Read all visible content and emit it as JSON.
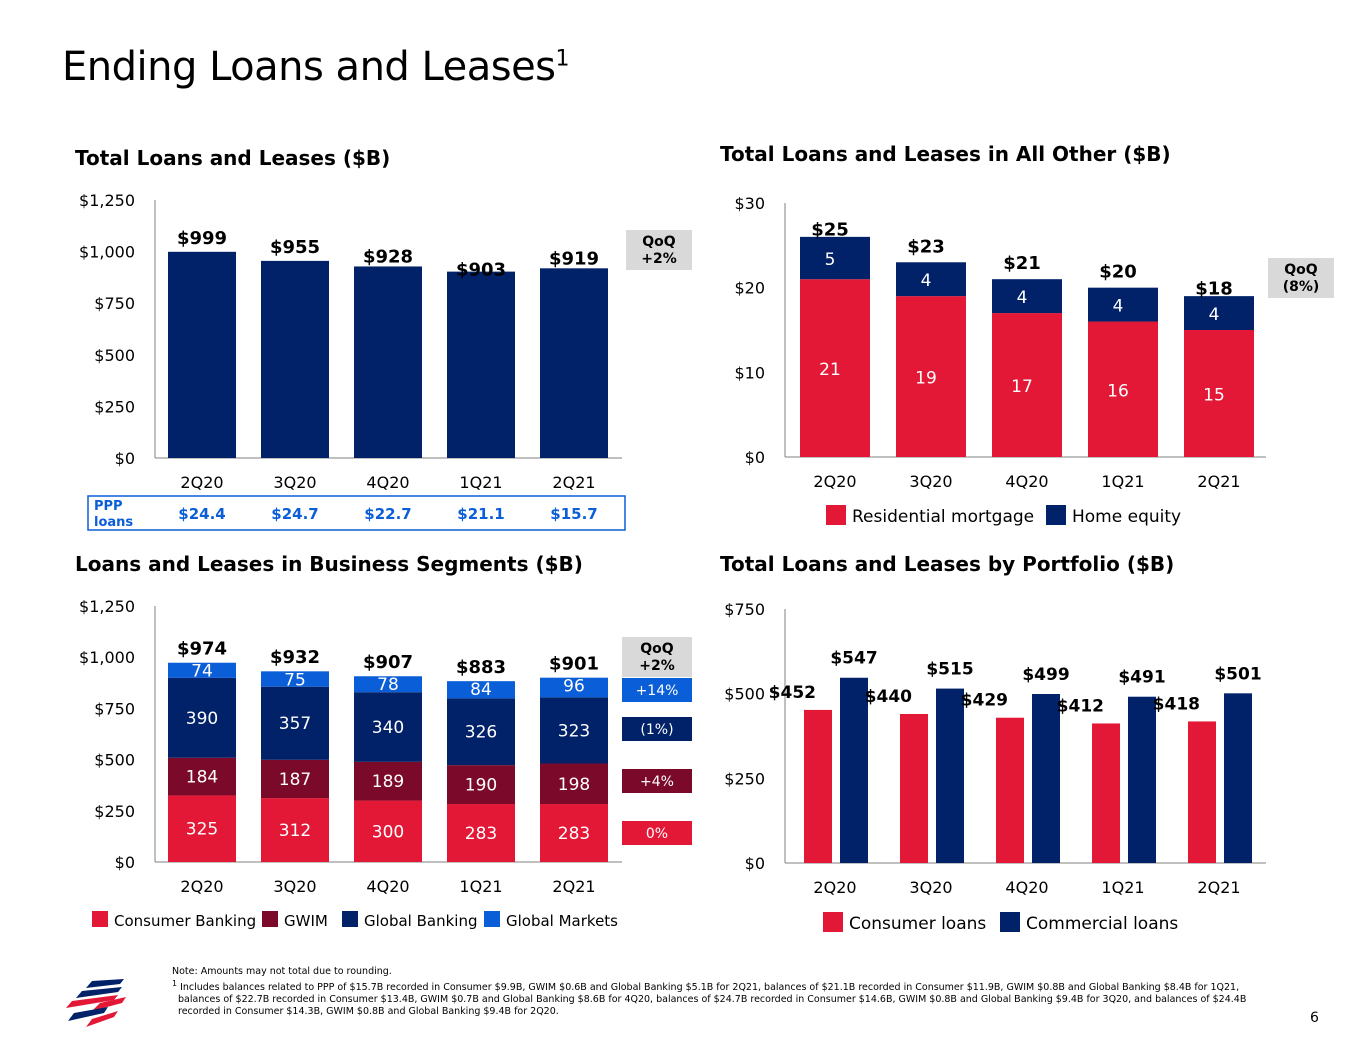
{
  "page": {
    "title": "Ending Loans and Leases",
    "title_superscript": "1",
    "page_number": "6"
  },
  "colors": {
    "navy": "#012169",
    "red": "#e31837",
    "maroon": "#7b0a2a",
    "blue": "#0a5ed7",
    "qoq_bg": "#d9d9d9"
  },
  "notes": {
    "note": "Note: Amounts may not total due to rounding.",
    "footnote_marker": "1",
    "footnote": "Includes balances related to PPP of $15.7B recorded in Consumer $9.9B, GWIM $0.6B and Global Banking $5.1B for 2Q21, balances of $21.1B recorded in Consumer $11.9B, GWIM $0.8B and Global Banking $8.4B for 1Q21, balances of $22.7B recorded in Consumer $13.4B, GWIM $0.7B and Global Banking $8.6B for 4Q20, balances of $24.7B recorded in Consumer $14.6B, GWIM $0.8B and Global Banking $9.4B for 3Q20, and balances of $24.4B recorded in Consumer $14.3B, GWIM $0.8B and Global Banking $9.4B for 2Q20."
  },
  "chart_data": [
    {
      "type": "bar",
      "title": "Total Loans and Leases ($B)",
      "categories": [
        "2Q20",
        "3Q20",
        "4Q20",
        "1Q21",
        "2Q21"
      ],
      "values": [
        999,
        955,
        928,
        903,
        919
      ],
      "data_labels": [
        "$999",
        "$955",
        "$928",
        "$903",
        "$919"
      ],
      "yticks": [
        "$0",
        "$250",
        "$500",
        "$750",
        "$1,000",
        "$1,250"
      ],
      "ylim": [
        0,
        1250
      ],
      "qoq": [
        "QoQ",
        "+2%"
      ],
      "ppp_row": {
        "label": [
          "PPP",
          "loans"
        ],
        "values": [
          "$24.4",
          "$24.7",
          "$22.7",
          "$21.1",
          "$15.7"
        ]
      }
    },
    {
      "type": "bar",
      "stacked": true,
      "title": "Total Loans and Leases in All Other ($B)",
      "categories": [
        "2Q20",
        "3Q20",
        "4Q20",
        "1Q21",
        "2Q21"
      ],
      "series": [
        {
          "name": "Residential mortgage",
          "color": "#e31837",
          "values": [
            21,
            19,
            17,
            16,
            15
          ]
        },
        {
          "name": "Home equity",
          "color": "#012169",
          "values": [
            5,
            4,
            4,
            4,
            4
          ]
        }
      ],
      "totals": [
        25,
        23,
        21,
        20,
        18
      ],
      "total_labels": [
        "$25",
        "$23",
        "$21",
        "$20",
        "$18"
      ],
      "yticks": [
        "$0",
        "$10",
        "$20",
        "$30"
      ],
      "ylim": [
        0,
        30
      ],
      "qoq": [
        "QoQ",
        "(8%)"
      ],
      "legend_position": "bottom"
    },
    {
      "type": "bar",
      "stacked": true,
      "title": "Loans and Leases in Business Segments ($B)",
      "categories": [
        "2Q20",
        "3Q20",
        "4Q20",
        "1Q21",
        "2Q21"
      ],
      "series": [
        {
          "name": "Consumer Banking",
          "color": "#e31837",
          "values": [
            325,
            312,
            300,
            283,
            283
          ],
          "qoq": "0%"
        },
        {
          "name": "GWIM",
          "color": "#7b0a2a",
          "values": [
            184,
            187,
            189,
            190,
            198
          ],
          "qoq": "+4%"
        },
        {
          "name": "Global Banking",
          "color": "#012169",
          "values": [
            390,
            357,
            340,
            326,
            323
          ],
          "qoq": "(1%)"
        },
        {
          "name": "Global Markets",
          "color": "#0a5ed7",
          "values": [
            74,
            75,
            78,
            84,
            96
          ],
          "qoq": "+14%"
        }
      ],
      "totals": [
        974,
        932,
        907,
        883,
        901
      ],
      "total_labels": [
        "$974",
        "$932",
        "$907",
        "$883",
        "$901"
      ],
      "yticks": [
        "$0",
        "$250",
        "$500",
        "$750",
        "$1,000",
        "$1,250"
      ],
      "ylim": [
        0,
        1250
      ],
      "qoq": [
        "QoQ",
        "+2%"
      ],
      "legend_position": "bottom"
    },
    {
      "type": "bar",
      "grouped": true,
      "title": "Total Loans and Leases by Portfolio ($B)",
      "categories": [
        "2Q20",
        "3Q20",
        "4Q20",
        "1Q21",
        "2Q21"
      ],
      "series": [
        {
          "name": "Consumer loans",
          "color": "#e31837",
          "values": [
            452,
            440,
            429,
            412,
            418
          ],
          "labels": [
            "$452",
            "$440",
            "$429",
            "$412",
            "$418"
          ]
        },
        {
          "name": "Commercial loans",
          "color": "#012169",
          "values": [
            547,
            515,
            499,
            491,
            501
          ],
          "labels": [
            "$547",
            "$515",
            "$499",
            "$491",
            "$501"
          ]
        }
      ],
      "yticks": [
        "$0",
        "$250",
        "$500",
        "$750"
      ],
      "ylim": [
        0,
        750
      ],
      "legend_position": "bottom"
    }
  ]
}
